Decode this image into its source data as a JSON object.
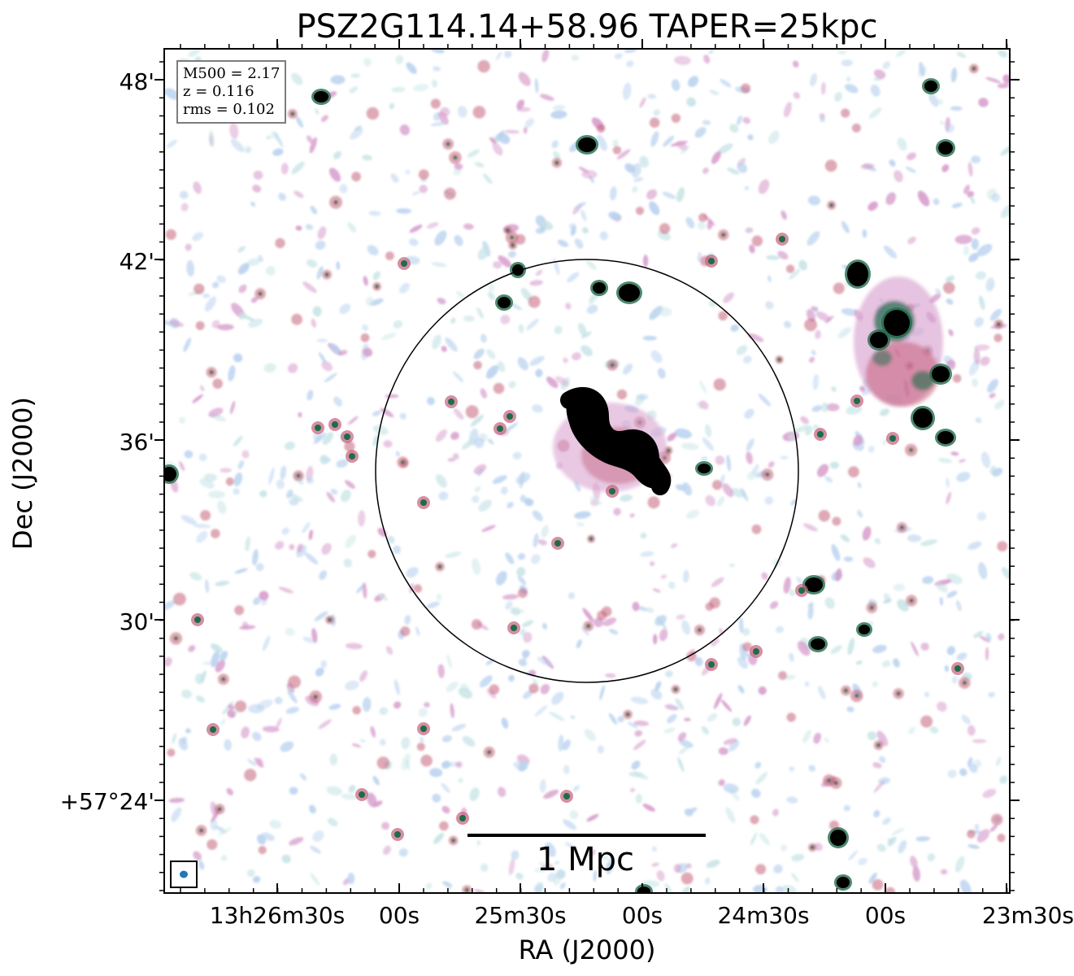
{
  "title": "PSZ2G114.14+58.96 TAPER=25kpc",
  "axes": {
    "xlabel": "RA (J2000)",
    "ylabel": "Dec (J2000)",
    "x_ticks": [
      "13h26m30s",
      "00s",
      "25m30s",
      "00s",
      "24m30s",
      "00s",
      "23m30s"
    ],
    "y_ticks": [
      "48'",
      "42'",
      "36'",
      "30'",
      "+57°24'"
    ]
  },
  "info": {
    "mass_line": "M500 = 2.17",
    "redshift_line": "z = 0.116",
    "rms_line": "rms = 0.102"
  },
  "scale_bar": {
    "label": "1 Mpc"
  },
  "colors": {
    "background": "#ffffff",
    "faint_emission": "#b9d2ef",
    "faint_emission_alt": "#c8e4e6",
    "mid_emission": "#d69bcb",
    "strong_emission": "#c4607a",
    "core_emission": "#1f6b4a",
    "saturated": "#000000",
    "beam": "#2177b8",
    "circle": "#000000"
  }
}
